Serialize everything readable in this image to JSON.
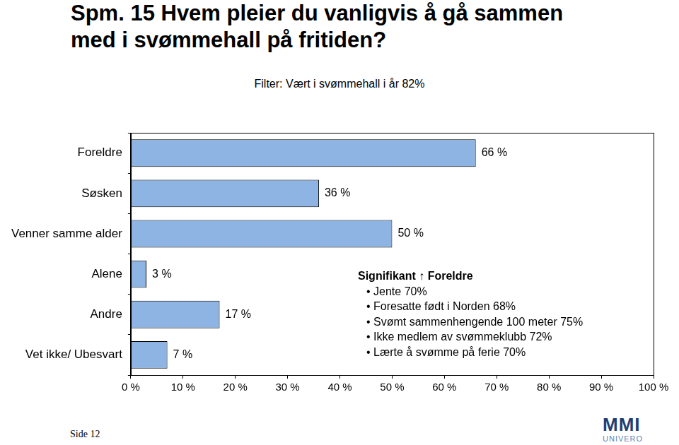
{
  "chart_data": {
    "type": "bar",
    "title": "Spm. 15 Hvem pleier du vanligvis å gå sammen med i svømmehall på fritiden?",
    "subtitle": "Filter: Vært i svømmehall i år 82%",
    "categories": [
      "Foreldre",
      "Søsken",
      "Venner samme alder",
      "Alene",
      "Andre",
      "Vet ikke/ Ubesvart"
    ],
    "values": [
      66,
      36,
      50,
      3,
      17,
      7
    ],
    "value_labels": [
      "66 %",
      "36 %",
      "50 %",
      "3 %",
      "17 %",
      "7 %"
    ],
    "color": "#8db4e2",
    "orientation": "horizontal",
    "data_labels": true,
    "grid": false,
    "xlim": [
      0,
      100
    ],
    "xticks": [
      {
        "value": 0,
        "label": "0 %"
      },
      {
        "value": 10,
        "label": "10 %"
      },
      {
        "value": 20,
        "label": "20 %"
      },
      {
        "value": 30,
        "label": "30 %"
      },
      {
        "value": 40,
        "label": "40 %"
      },
      {
        "value": 50,
        "label": "50 %"
      },
      {
        "value": 60,
        "label": "60 %"
      },
      {
        "value": 70,
        "label": "70 %"
      },
      {
        "value": 80,
        "label": "80 %"
      },
      {
        "value": 90,
        "label": "90 %"
      },
      {
        "value": 100,
        "label": "100 %"
      }
    ],
    "annotations": {
      "heading": "Signifikant ↑ Foreldre",
      "items": [
        "Jente 70%",
        "Foresatte født i Norden 68%",
        "Svømt sammenhengende 100 meter 75%",
        "Ikke medlem av svømmeklubb 72%",
        "Lærte å svømme på ferie 70%"
      ]
    },
    "footer": "Side 12",
    "logo": [
      "MMI",
      "UNIVERO"
    ]
  }
}
